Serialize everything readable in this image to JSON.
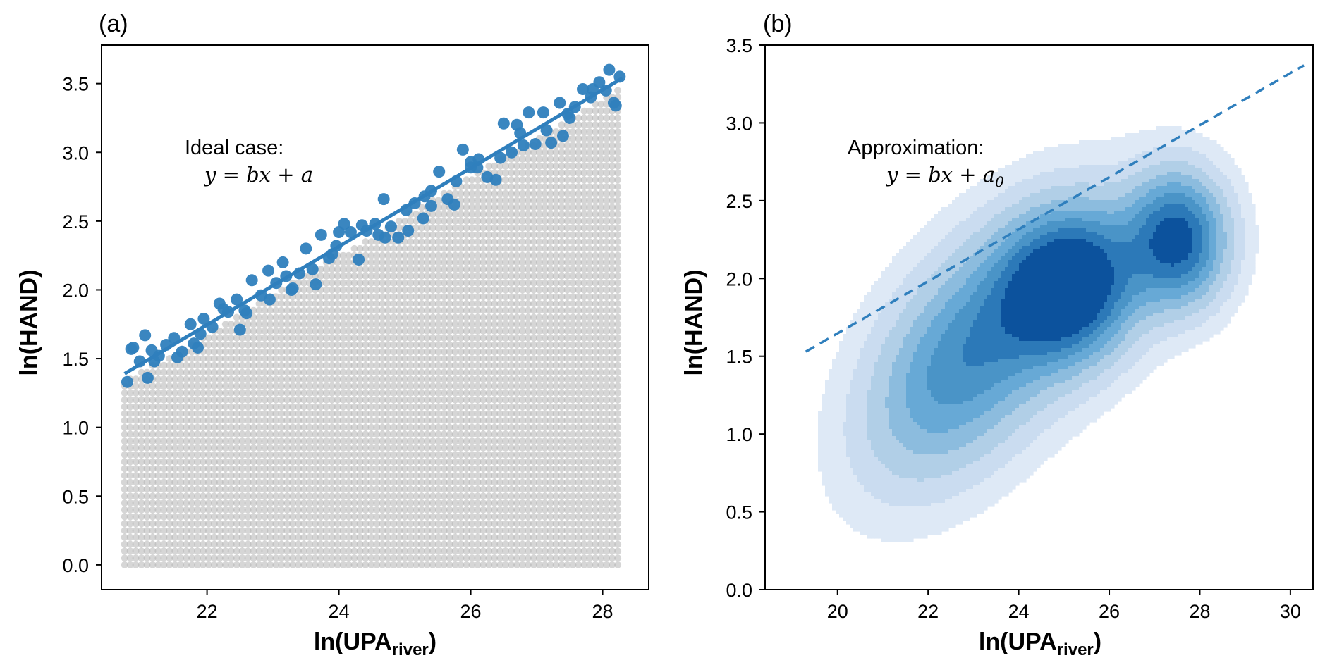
{
  "colors": {
    "highlight": "#2f7fbd",
    "highlight_edge": "#2a73ad",
    "gray_points": "#b4b4b4",
    "axis": "#000000",
    "kde_levels": [
      "#dee9f6",
      "#cadcf0",
      "#b1cfe7",
      "#8cbcde",
      "#67a9d6",
      "#4a94c7",
      "#2c79b8",
      "#0c529d"
    ],
    "fit_line": "#2f7fbd"
  },
  "chart_data": [
    {
      "panel": "(a)",
      "type": "scatter",
      "title": "",
      "xlabel": "ln(UPA",
      "xlabel_sub": "river",
      "xlabel_close": ")",
      "ylabel": "ln(HAND)",
      "xlim": [
        20.4,
        28.7
      ],
      "ylim": [
        -0.18,
        3.78
      ],
      "xticks": [
        22,
        24,
        26,
        28
      ],
      "xtick_labels": [
        "22",
        "24",
        "26",
        "28"
      ],
      "yticks": [
        0.0,
        0.5,
        1.0,
        1.5,
        2.0,
        2.5,
        3.0,
        3.5
      ],
      "ytick_labels": [
        "0.0",
        "0.5",
        "1.0",
        "1.5",
        "2.0",
        "2.5",
        "3.0",
        "3.5"
      ],
      "grid": false,
      "annotation_title": "Ideal case:",
      "annotation_eq": "y = bx + a",
      "gray_fill": {
        "description": "dense gray point cloud filling area between y=0 and the upper envelope",
        "x_range": [
          20.75,
          28.3
        ],
        "y_min": 0.0,
        "upper_envelope": {
          "intercept_at_x0": 1.33,
          "x0": 20.75,
          "slope": 0.285
        }
      },
      "fit_line": {
        "x": [
          20.75,
          28.3
        ],
        "y": [
          1.39,
          3.54
        ]
      },
      "series": [
        {
          "name": "upper points",
          "x": [
            20.79,
            20.88,
            20.98,
            21.06,
            21.16,
            21.27,
            21.38,
            21.5,
            21.62,
            21.75,
            21.86,
            21.95,
            22.08,
            22.19,
            22.32,
            22.45,
            22.57,
            22.68,
            22.82,
            22.93,
            23.05,
            23.15,
            23.28,
            23.4,
            23.5,
            23.6,
            23.73,
            23.85,
            23.96,
            24.08,
            24.18,
            24.3,
            24.42,
            24.55,
            24.68,
            24.79,
            24.9,
            25.02,
            25.15,
            25.28,
            25.4,
            25.52,
            25.65,
            25.78,
            25.88,
            26.0,
            26.12,
            26.25,
            26.38,
            26.5,
            26.62,
            26.75,
            26.88,
            26.98,
            27.1,
            27.22,
            27.35,
            27.47,
            27.58,
            27.7,
            27.82,
            27.95,
            28.05,
            28.17,
            28.26,
            20.85,
            21.2,
            21.55,
            21.9,
            22.25,
            22.6,
            22.95,
            23.3,
            23.65,
            24.0,
            24.35,
            24.7,
            25.05,
            25.4,
            25.75,
            26.1,
            26.45,
            26.8,
            27.15,
            27.5,
            27.85,
            28.2,
            21.1,
            21.8,
            22.5,
            23.2,
            23.9,
            24.6,
            25.3,
            26.0,
            26.7,
            27.4,
            28.1
          ],
          "y": [
            1.33,
            1.58,
            1.48,
            1.67,
            1.56,
            1.52,
            1.6,
            1.65,
            1.55,
            1.75,
            1.58,
            1.79,
            1.73,
            1.9,
            1.84,
            1.93,
            1.85,
            2.07,
            1.96,
            2.14,
            2.05,
            2.2,
            2.0,
            2.12,
            2.3,
            2.15,
            2.4,
            2.23,
            2.32,
            2.48,
            2.42,
            2.22,
            2.43,
            2.48,
            2.66,
            2.46,
            2.38,
            2.58,
            2.63,
            2.52,
            2.72,
            2.86,
            2.66,
            2.79,
            3.02,
            2.89,
            2.95,
            2.82,
            2.8,
            3.21,
            3.0,
            3.14,
            3.29,
            3.06,
            3.29,
            3.07,
            3.36,
            3.28,
            3.33,
            3.46,
            3.4,
            3.51,
            3.45,
            3.36,
            3.55,
            1.57,
            1.48,
            1.51,
            1.68,
            1.86,
            1.83,
            1.93,
            2.01,
            2.04,
            2.42,
            2.47,
            2.38,
            2.43,
            2.61,
            2.62,
            2.89,
            2.96,
            3.05,
            3.16,
            3.25,
            3.46,
            3.34,
            1.36,
            1.61,
            1.71,
            2.1,
            2.26,
            2.4,
            2.68,
            2.93,
            3.2,
            3.12,
            3.6
          ]
        }
      ]
    },
    {
      "panel": "(b)",
      "type": "heatmap",
      "subtype": "kde-contour",
      "title": "",
      "xlabel": "ln(UPA",
      "xlabel_sub": "river",
      "xlabel_close": ")",
      "ylabel": "ln(HAND)",
      "xlim": [
        18.4,
        30.5
      ],
      "ylim": [
        0.0,
        3.5
      ],
      "xticks": [
        20,
        22,
        24,
        26,
        28,
        30
      ],
      "xtick_labels": [
        "20",
        "22",
        "24",
        "26",
        "28",
        "30"
      ],
      "yticks": [
        0.0,
        0.5,
        1.0,
        1.5,
        2.0,
        2.5,
        3.0,
        3.5
      ],
      "ytick_labels": [
        "0.0",
        "0.5",
        "1.0",
        "1.5",
        "2.0",
        "2.5",
        "3.0",
        "3.5"
      ],
      "grid": false,
      "annotation_title": "Approximation:",
      "annotation_eq": "y = bx + a",
      "annotation_eq_sub": "0",
      "dashed_line": {
        "x": [
          19.3,
          30.3
        ],
        "y": [
          1.53,
          3.37
        ]
      },
      "kde_components": [
        {
          "cx": 22.6,
          "cy": 1.45,
          "sx": 1.3,
          "sy": 0.48,
          "rho": 0.45,
          "w": 0.42
        },
        {
          "cx": 25.1,
          "cy": 1.95,
          "sx": 0.95,
          "sy": 0.3,
          "rho": 0.1,
          "w": 1.0
        },
        {
          "cx": 27.5,
          "cy": 2.25,
          "sx": 0.7,
          "sy": 0.27,
          "rho": 0.0,
          "w": 0.85
        },
        {
          "cx": 24.0,
          "cy": 1.7,
          "sx": 1.7,
          "sy": 0.55,
          "rho": 0.55,
          "w": 0.25
        }
      ],
      "kde_levels": [
        0.035,
        0.09,
        0.17,
        0.27,
        0.38,
        0.5,
        0.63,
        0.78
      ]
    }
  ]
}
